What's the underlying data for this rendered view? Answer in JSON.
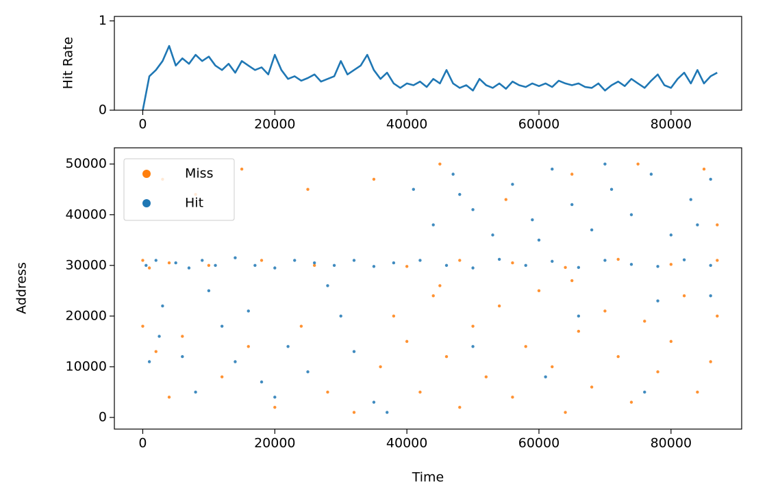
{
  "chart_data": [
    {
      "type": "line",
      "ylabel": "Hit Rate",
      "xlim": [
        -4300,
        90700
      ],
      "ylim": [
        0,
        1.05
      ],
      "xticks": [
        0,
        20000,
        40000,
        60000,
        80000
      ],
      "yticks": [
        0,
        1
      ],
      "series": [
        {
          "color": "#1f77b4",
          "x": [
            0,
            1000,
            2000,
            3000,
            4000,
            5000,
            6000,
            7000,
            8000,
            9000,
            10000,
            11000,
            12000,
            13000,
            14000,
            15000,
            16000,
            17000,
            18000,
            19000,
            20000,
            21000,
            22000,
            23000,
            24000,
            25000,
            26000,
            27000,
            28000,
            29000,
            30000,
            31000,
            32000,
            33000,
            34000,
            35000,
            36000,
            37000,
            38000,
            39000,
            40000,
            41000,
            42000,
            43000,
            44000,
            45000,
            46000,
            47000,
            48000,
            49000,
            50000,
            51000,
            52000,
            53000,
            54000,
            55000,
            56000,
            57000,
            58000,
            59000,
            60000,
            61000,
            62000,
            63000,
            64000,
            65000,
            66000,
            67000,
            68000,
            69000,
            70000,
            71000,
            72000,
            73000,
            74000,
            75000,
            76000,
            77000,
            78000,
            79000,
            80000,
            81000,
            82000,
            83000,
            84000,
            85000,
            86000,
            87000
          ],
          "values": [
            0,
            0.38,
            0.45,
            0.55,
            0.72,
            0.5,
            0.58,
            0.52,
            0.62,
            0.55,
            0.6,
            0.5,
            0.45,
            0.52,
            0.42,
            0.55,
            0.5,
            0.45,
            0.48,
            0.4,
            0.62,
            0.45,
            0.35,
            0.38,
            0.33,
            0.36,
            0.4,
            0.32,
            0.35,
            0.38,
            0.55,
            0.4,
            0.45,
            0.5,
            0.62,
            0.45,
            0.35,
            0.42,
            0.3,
            0.25,
            0.3,
            0.28,
            0.32,
            0.26,
            0.35,
            0.3,
            0.45,
            0.3,
            0.25,
            0.28,
            0.22,
            0.35,
            0.28,
            0.25,
            0.3,
            0.24,
            0.32,
            0.28,
            0.26,
            0.3,
            0.27,
            0.3,
            0.26,
            0.33,
            0.3,
            0.28,
            0.3,
            0.26,
            0.25,
            0.3,
            0.22,
            0.28,
            0.32,
            0.27,
            0.35,
            0.3,
            0.25,
            0.33,
            0.4,
            0.28,
            0.25,
            0.35,
            0.42,
            0.3,
            0.45,
            0.3,
            0.38,
            0.42
          ]
        }
      ]
    },
    {
      "type": "scatter",
      "xlabel": "Time",
      "ylabel": "Address",
      "xlim": [
        -4300,
        90700
      ],
      "ylim": [
        -2300,
        53200
      ],
      "xticks": [
        0,
        20000,
        40000,
        60000,
        80000
      ],
      "yticks": [
        0,
        10000,
        20000,
        30000,
        40000,
        50000
      ],
      "legend": "upper left",
      "series": [
        {
          "name": "Miss",
          "color": "#ff7f0e",
          "x": [
            0,
            1000,
            4000,
            10000,
            18000,
            26000,
            40000,
            48000,
            56000,
            64000,
            72000,
            80000,
            87000,
            0,
            2000,
            4000,
            6000,
            12000,
            16000,
            20000,
            24000,
            28000,
            32000,
            36000,
            38000,
            40000,
            42000,
            44000,
            46000,
            48000,
            50000,
            52000,
            54000,
            56000,
            58000,
            60000,
            62000,
            64000,
            66000,
            68000,
            70000,
            72000,
            74000,
            76000,
            78000,
            80000,
            82000,
            84000,
            86000,
            87000,
            45000,
            65000,
            3000,
            8000,
            15000,
            25000,
            35000,
            45000,
            55000,
            65000,
            75000,
            85000,
            87000
          ],
          "values": [
            31000,
            29500,
            30500,
            30000,
            31000,
            30000,
            29800,
            31000,
            30500,
            29600,
            31200,
            30200,
            31000,
            18000,
            13000,
            4000,
            16000,
            8000,
            14000,
            2000,
            18000,
            5000,
            1000,
            10000,
            20000,
            15000,
            5000,
            24000,
            12000,
            2000,
            18000,
            8000,
            22000,
            4000,
            14000,
            25000,
            10000,
            1000,
            17000,
            6000,
            21000,
            12000,
            3000,
            19000,
            9000,
            15000,
            24000,
            5000,
            11000,
            20000,
            26000,
            27000,
            47000,
            44000,
            49000,
            45000,
            47000,
            50000,
            43000,
            48000,
            50000,
            49000,
            38000
          ]
        },
        {
          "name": "Hit",
          "color": "#1f77b4",
          "x": [
            500,
            2000,
            5000,
            7000,
            9000,
            11000,
            14000,
            17000,
            20000,
            23000,
            26000,
            29000,
            32000,
            35000,
            38000,
            42000,
            46000,
            50000,
            54000,
            58000,
            62000,
            66000,
            70000,
            74000,
            78000,
            82000,
            86000,
            41000,
            44000,
            47000,
            50000,
            53000,
            56000,
            59000,
            62000,
            65000,
            68000,
            71000,
            74000,
            77000,
            80000,
            83000,
            86000,
            84000,
            60000,
            48000,
            70000,
            3000,
            6000,
            8000,
            10000,
            12000,
            14000,
            16000,
            18000,
            20000,
            22000,
            25000,
            28000,
            30000,
            32000,
            35000,
            37000,
            1000,
            2500,
            61000,
            76000,
            50000,
            66000,
            86000,
            78000
          ],
          "values": [
            30000,
            31000,
            30500,
            29500,
            31000,
            30000,
            31500,
            30000,
            29500,
            31000,
            30500,
            30000,
            31000,
            29800,
            30500,
            31000,
            30000,
            29500,
            31200,
            30000,
            30800,
            29600,
            31000,
            30200,
            29800,
            31100,
            30000,
            45000,
            38000,
            48000,
            41000,
            36000,
            46000,
            39000,
            49000,
            42000,
            37000,
            45000,
            40000,
            48000,
            36000,
            43000,
            47000,
            38000,
            35000,
            44000,
            50000,
            22000,
            12000,
            5000,
            25000,
            18000,
            11000,
            21000,
            7000,
            4000,
            14000,
            9000,
            26000,
            20000,
            13000,
            3000,
            1000,
            11000,
            16000,
            8000,
            5000,
            14000,
            20000,
            24000,
            23000
          ]
        }
      ]
    }
  ]
}
